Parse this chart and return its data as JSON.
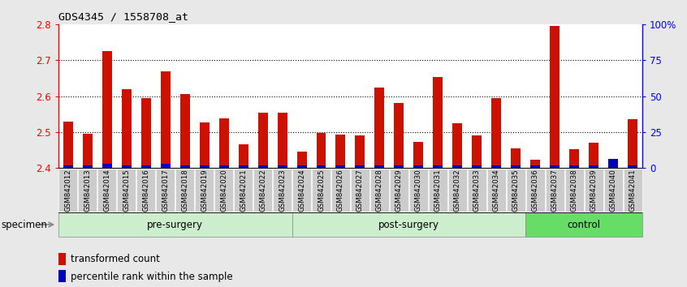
{
  "title": "GDS4345 / 1558708_at",
  "samples": [
    "GSM842012",
    "GSM842013",
    "GSM842014",
    "GSM842015",
    "GSM842016",
    "GSM842017",
    "GSM842018",
    "GSM842019",
    "GSM842020",
    "GSM842021",
    "GSM842022",
    "GSM842023",
    "GSM842024",
    "GSM842025",
    "GSM842026",
    "GSM842027",
    "GSM842028",
    "GSM842029",
    "GSM842030",
    "GSM842031",
    "GSM842032",
    "GSM842033",
    "GSM842034",
    "GSM842035",
    "GSM842036",
    "GSM842037",
    "GSM842038",
    "GSM842039",
    "GSM842040",
    "GSM842041"
  ],
  "red_values": [
    2.53,
    2.495,
    2.725,
    2.62,
    2.595,
    2.67,
    2.605,
    2.527,
    2.538,
    2.465,
    2.555,
    2.555,
    2.445,
    2.498,
    2.493,
    2.49,
    2.625,
    2.582,
    2.472,
    2.653,
    2.525,
    2.49,
    2.595,
    2.455,
    2.422,
    2.795,
    2.452,
    2.47,
    2.41,
    2.535
  ],
  "blue_pct": [
    2,
    2,
    3,
    2,
    2,
    3,
    2,
    2,
    2,
    2,
    2,
    2,
    2,
    2,
    2,
    2,
    2,
    2,
    2,
    2,
    2,
    2,
    2,
    2,
    2,
    2,
    2,
    2,
    6,
    2
  ],
  "ylim_left": [
    2.4,
    2.8
  ],
  "ylim_right": [
    0,
    100
  ],
  "left_ticks": [
    2.4,
    2.5,
    2.6,
    2.7,
    2.8
  ],
  "right_ticks": [
    0,
    25,
    50,
    75,
    100
  ],
  "right_tick_labels": [
    "0",
    "25",
    "50",
    "75",
    "100%"
  ],
  "grid_values": [
    2.5,
    2.6,
    2.7
  ],
  "bar_color": "#CC1100",
  "blue_color": "#0000BB",
  "bg_color": "#E8E8E8",
  "plot_bg": "#FFFFFF",
  "tick_bg": "#CCCCCC",
  "groups": [
    {
      "label": "pre-surgery",
      "start": 0,
      "end": 12,
      "color": "#CCEECC"
    },
    {
      "label": "post-surgery",
      "start": 12,
      "end": 24,
      "color": "#CCEECC"
    },
    {
      "label": "control",
      "start": 24,
      "end": 30,
      "color": "#66DD66"
    }
  ],
  "legend_red": "transformed count",
  "legend_blue": "percentile rank within the sample",
  "specimen_label": "specimen"
}
